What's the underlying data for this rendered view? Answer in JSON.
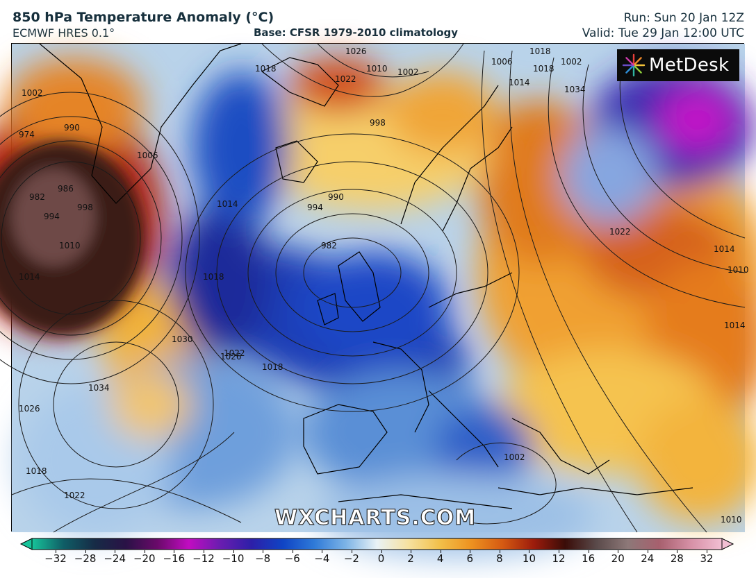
{
  "header": {
    "title": "850 hPa Temperature Anomaly (°C)",
    "model": "ECMWF HRES 0.1°",
    "base": "Base: CFSR 1979-2010 climatology",
    "run": "Run: Sun 20 Jan 12Z",
    "valid": "Valid: Tue 29 Jan 12:00 UTC"
  },
  "logo": {
    "text": "MetDesk",
    "icon": "metdesk-star-logo"
  },
  "watermark": "WXCHARTS.COM",
  "colorbar": {
    "ticks": [
      "−32",
      "−28",
      "−24",
      "−20",
      "−16",
      "−12",
      "−10",
      "−8",
      "−6",
      "−4",
      "−2",
      "0",
      "2",
      "4",
      "6",
      "8",
      "10",
      "12",
      "16",
      "20",
      "24",
      "28",
      "32"
    ],
    "colors": [
      "#17c39a",
      "#0f5e66",
      "#162b46",
      "#2a1246",
      "#6a0a6a",
      "#c10cc1",
      "#6a1db0",
      "#2d1fa8",
      "#0f44c4",
      "#2f7ad8",
      "#7cb3e6",
      "#e9f2f6",
      "#f6e1a0",
      "#f2c04a",
      "#ee9220",
      "#d55a12",
      "#9c1c0c",
      "#3a0c08",
      "#5a4a4a",
      "#8d7878",
      "#a7606e",
      "#d690a6",
      "#f2bfd3"
    ]
  },
  "isobar_labels": [
    "1002",
    "974",
    "990",
    "982",
    "986",
    "994",
    "998",
    "1010",
    "1014",
    "1006",
    "1018",
    "1026",
    "1022",
    "1010",
    "1002",
    "1018",
    "1002",
    "1006",
    "1018",
    "1014",
    "1034",
    "998",
    "994",
    "990",
    "982",
    "1014",
    "1018",
    "1022",
    "1030",
    "1034",
    "1026",
    "1018",
    "1022",
    "1026",
    "1022",
    "1018",
    "1014",
    "1010",
    "1014",
    "1002",
    "1010"
  ]
}
